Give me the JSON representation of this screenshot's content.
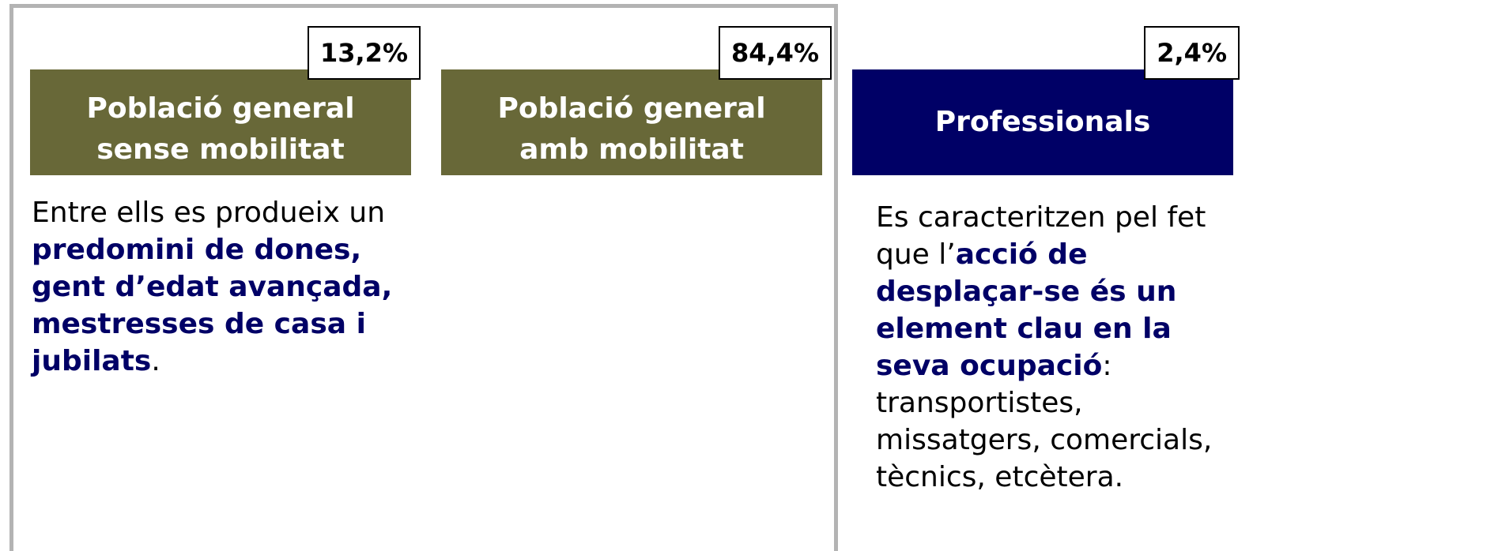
{
  "cards": [
    {
      "percent": "13,2%",
      "header": "Població general sense mobilitat",
      "color": "#686838",
      "body": [
        {
          "text": "Entre ells es produeix un "
        },
        {
          "text": "predomini de dones, gent d’edat avançada, mestresses de casa i jubilats",
          "bold": true
        },
        {
          "text": "."
        }
      ]
    },
    {
      "percent": "84,4%",
      "header": "Població general amb mobilitat",
      "color": "#686838"
    },
    {
      "percent": "2,4%",
      "header": "Professionals",
      "color": "#000066",
      "body": [
        {
          "text": "Es caracteritzen pel fet que l’"
        },
        {
          "text": "acció de desplaçar-se és un element clau en la seva ocupació",
          "bold": true
        },
        {
          "text": ": transportistes, missatgers, comercials, tècnics, etcètera."
        }
      ]
    }
  ]
}
